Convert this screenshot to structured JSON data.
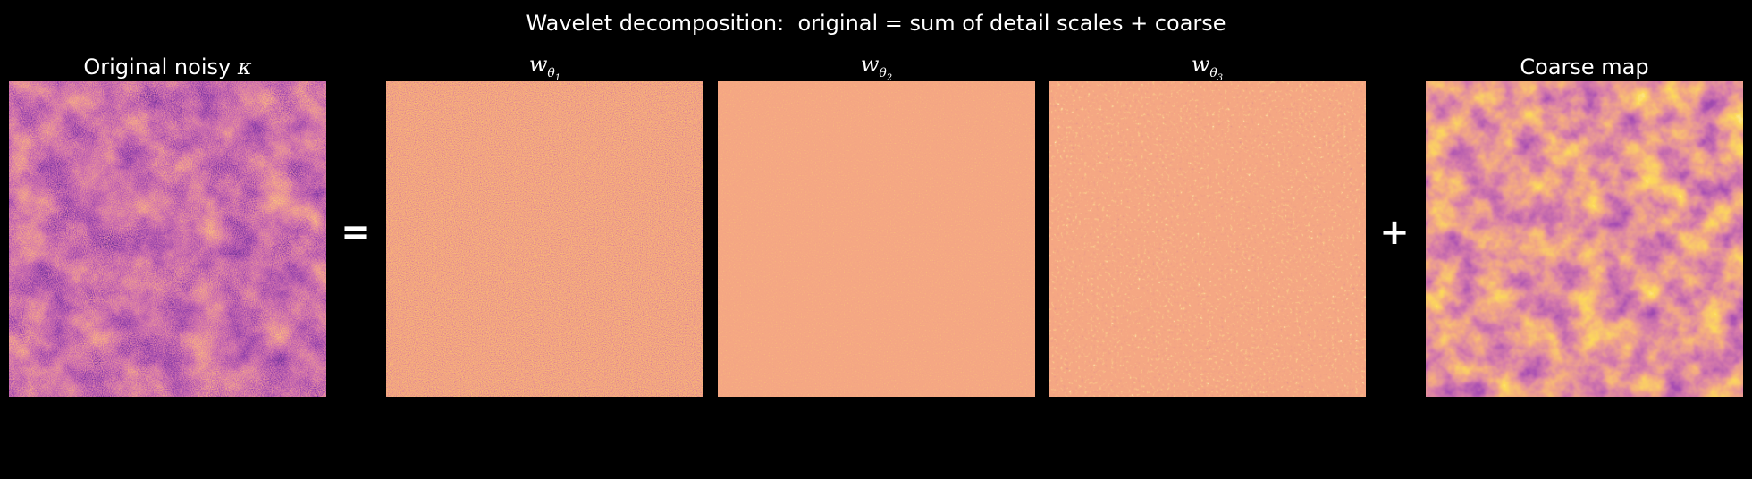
{
  "figure": {
    "suptitle": "Wavelet decomposition:  original = sum of detail scales + coarse",
    "equals_sign": "=",
    "plus_sign": "+"
  },
  "panels": [
    {
      "key": "original",
      "title": "Original noisy ",
      "title_symbol": "κ",
      "colormap": "inferno"
    },
    {
      "key": "w1",
      "title_base": "w",
      "title_sub": "θ",
      "title_subsub": "1",
      "colormap": "inferno"
    },
    {
      "key": "w2",
      "title_base": "w",
      "title_sub": "θ",
      "title_subsub": "2",
      "colormap": "inferno"
    },
    {
      "key": "w3",
      "title_base": "w",
      "title_sub": "θ",
      "title_subsub": "3",
      "colormap": "inferno"
    },
    {
      "key": "coarse",
      "title": "Coarse map",
      "colormap": "inferno"
    }
  ],
  "colors": {
    "background": "#000000",
    "text": "#ffffff",
    "detail_mid": "#e8643a",
    "inferno_dark": "#2b0b47",
    "inferno_mid": "#b1325a",
    "inferno_bright": "#fcd25a"
  }
}
